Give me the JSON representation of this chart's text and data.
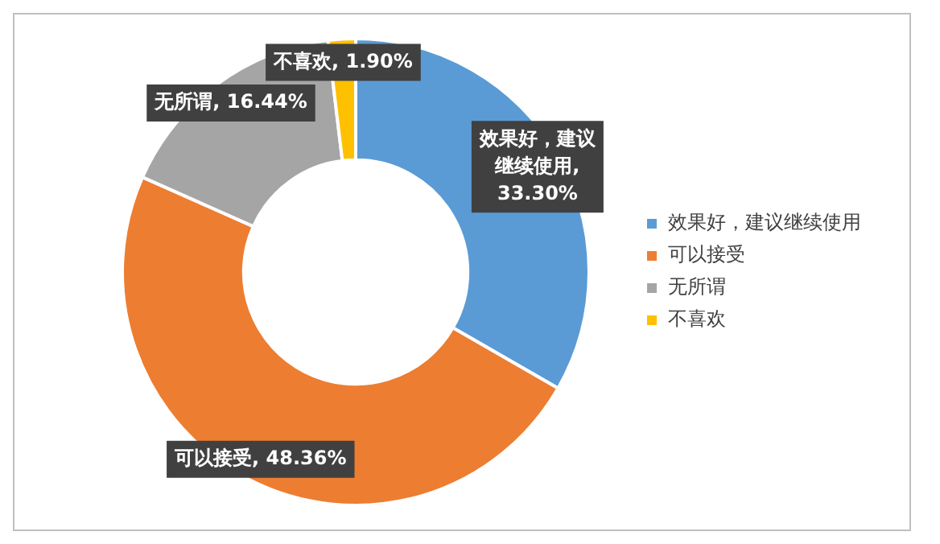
{
  "chart_data": {
    "type": "donut",
    "categories": [
      "效果好，建议继续使用",
      "可以接受",
      "无所谓",
      "不喜欢"
    ],
    "values": [
      33.3,
      48.36,
      16.44,
      1.9
    ],
    "value_labels": [
      "效果好，建议继续使用, 33.30%",
      "可以接受, 48.36%",
      "无所谓, 16.44%",
      "不喜欢, 1.90%"
    ],
    "colors": [
      "#5b9bd5",
      "#ed7d31",
      "#a5a5a5",
      "#ffc000"
    ],
    "legend": "right"
  }
}
